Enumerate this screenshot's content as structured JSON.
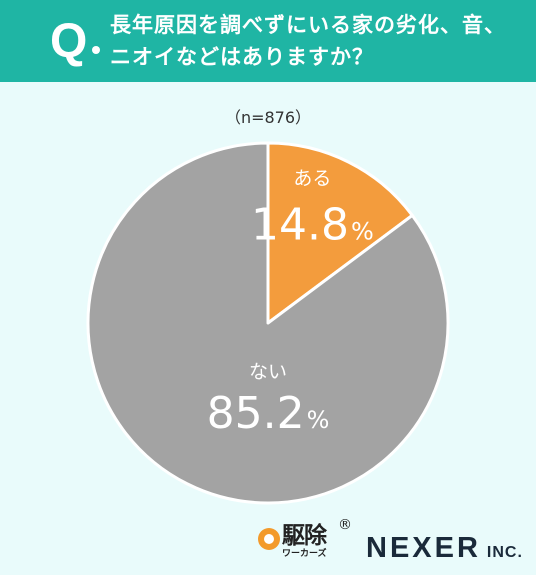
{
  "header": {
    "q_mark": "Q",
    "question_line1": "長年原因を調べずにいる家の劣化、音、",
    "question_line2": "ニオイなどはありますか？"
  },
  "sample_size": "（n=876）",
  "chart_data": {
    "type": "pie",
    "title": "",
    "slices": [
      {
        "label": "ある",
        "value": 14.8,
        "value_text": "14.8",
        "unit": "%",
        "color": "#f39c3d"
      },
      {
        "label": "ない",
        "value": 85.2,
        "value_text": "85.2",
        "unit": "%",
        "color": "#a3a3a3"
      }
    ],
    "start": "12 o'clock",
    "direction": "clockwise"
  },
  "logos": {
    "kujo_main": "駆除",
    "kujo_sub": "ワーカーズ",
    "kujo_reg": "®",
    "nexer_main": "NEXER",
    "nexer_sub": "INC."
  },
  "colors": {
    "header_bg": "#1fb5a4",
    "page_bg": "#e9fbfb"
  }
}
